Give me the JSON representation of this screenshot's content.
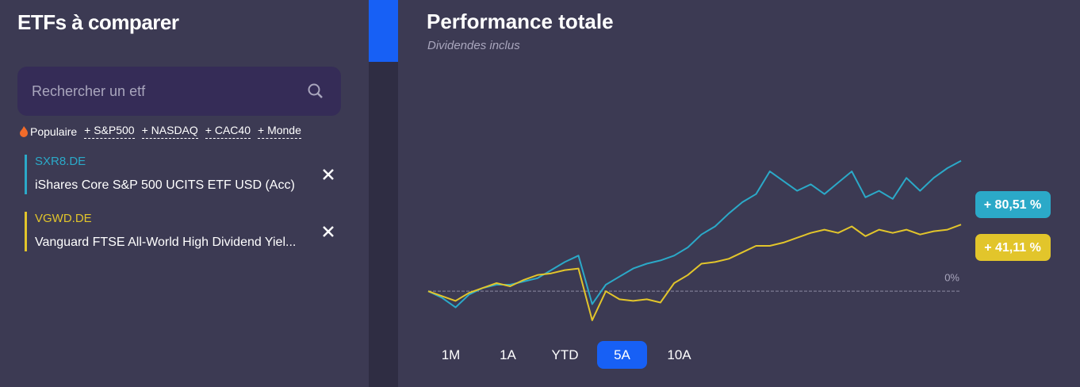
{
  "sidebar": {
    "title": "ETFs à comparer",
    "search_placeholder": "Rechercher un etf",
    "popular_label": "Populaire",
    "tags": [
      "+ S&P500",
      "+ NASDAQ",
      "+ CAC40",
      "+ Monde"
    ],
    "etfs": [
      {
        "ticker": "SXR8.DE",
        "name": "iShares Core S&P 500 UCITS ETF USD (Acc)",
        "color": "#2ba9c8"
      },
      {
        "ticker": "VGWD.DE",
        "name": "Vanguard FTSE All-World High Dividend Yiel...",
        "color": "#e2c52b"
      }
    ]
  },
  "chart_data": {
    "type": "line",
    "title": "Performance totale",
    "subtitle": "Dividendes inclus",
    "ylim": [
      -20,
      100
    ],
    "yticks": [
      {
        "value": 0,
        "label": "0%"
      }
    ],
    "grid": true,
    "series": [
      {
        "color": "#2ba9c8",
        "values": [
          0,
          -4,
          -10,
          -2,
          2,
          4,
          4,
          6,
          8,
          13,
          18,
          22,
          -8,
          4,
          9,
          14,
          17,
          19,
          22,
          27,
          35,
          40,
          48,
          55,
          60,
          74,
          68,
          62,
          66,
          60,
          67,
          74,
          58,
          62,
          57,
          70,
          62,
          70,
          76,
          80.51
        ],
        "value_labels": [
          "+ 80,51 %"
        ]
      },
      {
        "color": "#e2c52b",
        "values": [
          0,
          -3,
          -6,
          -1,
          2,
          5,
          3,
          7,
          10,
          11,
          13,
          14,
          -18,
          0,
          -5,
          -6,
          -5,
          -7,
          5,
          10,
          17,
          18,
          20,
          24,
          28,
          28,
          30,
          33,
          36,
          38,
          36,
          40,
          34,
          38,
          36,
          38,
          35,
          37,
          38,
          41.11
        ],
        "value_labels": [
          "+ 41,11 %"
        ]
      }
    ]
  },
  "range_buttons": {
    "labels": [
      "1M",
      "1A",
      "YTD",
      "5A",
      "10A"
    ],
    "active_index": 3
  }
}
